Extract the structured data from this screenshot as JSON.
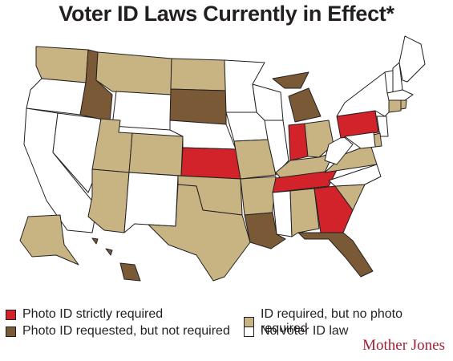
{
  "title": "Voter ID Laws Currently in Effect*",
  "brand": "Mother Jones",
  "colors": {
    "photo_required": "#d2232a",
    "photo_requested": "#7a5a36",
    "id_required": "#c8b482",
    "no_law": "#ffffff",
    "border": "#231f20"
  },
  "legend": [
    {
      "key": "photo_required",
      "label": "Photo ID strictly required"
    },
    {
      "key": "photo_requested",
      "label": "Photo ID requested, but not required"
    },
    {
      "key": "id_required",
      "label": "ID required, but no photo required"
    },
    {
      "key": "no_law",
      "label": "No voter ID law"
    }
  ],
  "states": {
    "WA": "id_required",
    "OR": "no_law",
    "CA": "no_law",
    "NV": "no_law",
    "ID": "photo_requested",
    "MT": "id_required",
    "WY": "no_law",
    "UT": "id_required",
    "AZ": "id_required",
    "CO": "id_required",
    "NM": "no_law",
    "ND": "id_required",
    "SD": "photo_requested",
    "NE": "no_law",
    "KS": "photo_required",
    "OK": "id_required",
    "TX": "id_required",
    "MN": "no_law",
    "IA": "no_law",
    "MO": "id_required",
    "AR": "id_required",
    "LA": "photo_requested",
    "WI": "no_law",
    "IL": "no_law",
    "MI": "photo_requested",
    "IN": "photo_required",
    "OH": "id_required",
    "KY": "id_required",
    "TN": "photo_required",
    "MS": "no_law",
    "AL": "id_required",
    "GA": "photo_required",
    "FL": "photo_requested",
    "SC": "id_required",
    "NC": "no_law",
    "VA": "id_required",
    "WV": "no_law",
    "PA": "photo_required",
    "NY": "no_law",
    "VT": "no_law",
    "NH": "no_law",
    "ME": "no_law",
    "MA": "no_law",
    "CT": "id_required",
    "RI": "id_required",
    "NJ": "no_law",
    "DE": "id_required",
    "MD": "no_law",
    "AK": "id_required",
    "HI": "photo_requested"
  }
}
